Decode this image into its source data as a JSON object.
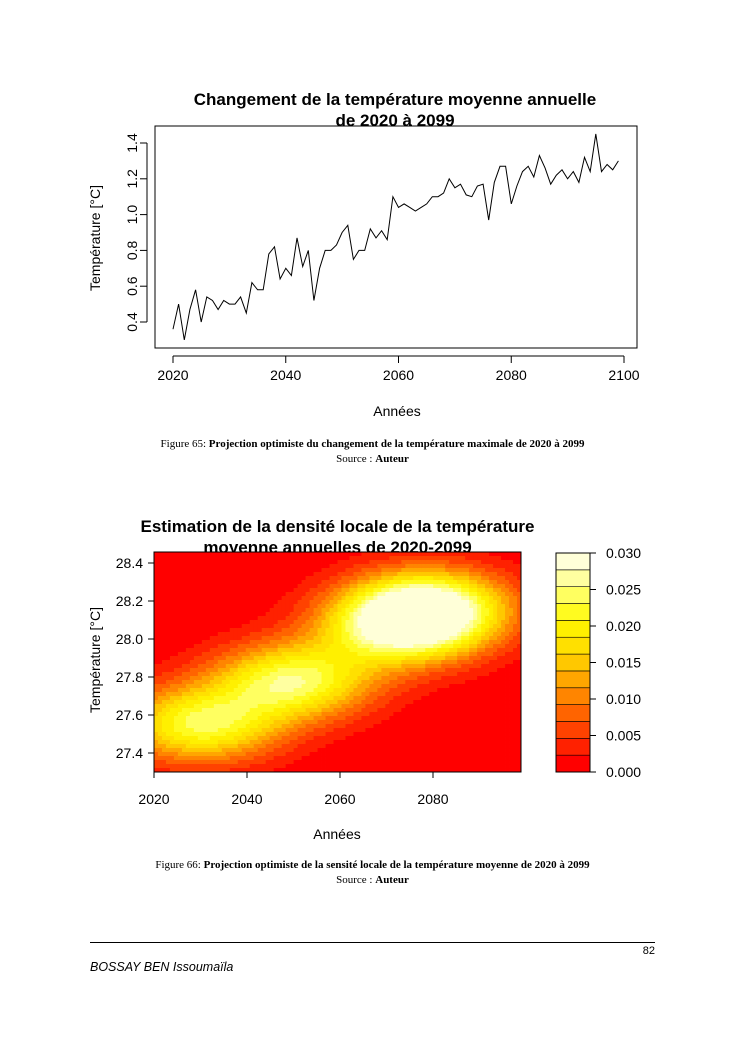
{
  "chart_data": [
    {
      "type": "line",
      "title_line1": "Changement de la température moyenne annuelle",
      "title_line2": "de 2020 à 2099",
      "xlabel": "Années",
      "ylabel": "Température [°C]",
      "xlim": [
        2020,
        2100
      ],
      "ylim": [
        0.3,
        1.5
      ],
      "xticks": [
        "2020",
        "2040",
        "2060",
        "2080",
        "2100"
      ],
      "yticks": [
        "0.4",
        "0.6",
        "0.8",
        "1.0",
        "1.2",
        "1.4"
      ],
      "x": [
        2020,
        2021,
        2022,
        2023,
        2024,
        2025,
        2026,
        2027,
        2028,
        2029,
        2030,
        2031,
        2032,
        2033,
        2034,
        2035,
        2036,
        2037,
        2038,
        2039,
        2040,
        2041,
        2042,
        2043,
        2044,
        2045,
        2046,
        2047,
        2048,
        2049,
        2050,
        2051,
        2052,
        2053,
        2054,
        2055,
        2056,
        2057,
        2058,
        2059,
        2060,
        2061,
        2062,
        2063,
        2064,
        2065,
        2066,
        2067,
        2068,
        2069,
        2070,
        2071,
        2072,
        2073,
        2074,
        2075,
        2076,
        2077,
        2078,
        2079,
        2080,
        2081,
        2082,
        2083,
        2084,
        2085,
        2086,
        2087,
        2088,
        2089,
        2090,
        2091,
        2092,
        2093,
        2094,
        2095,
        2096,
        2097,
        2098,
        2099
      ],
      "values": [
        0.36,
        0.5,
        0.3,
        0.47,
        0.58,
        0.4,
        0.54,
        0.52,
        0.47,
        0.52,
        0.5,
        0.5,
        0.54,
        0.45,
        0.62,
        0.58,
        0.58,
        0.78,
        0.82,
        0.64,
        0.7,
        0.66,
        0.87,
        0.71,
        0.8,
        0.52,
        0.7,
        0.8,
        0.8,
        0.83,
        0.9,
        0.94,
        0.75,
        0.8,
        0.8,
        0.92,
        0.87,
        0.91,
        0.86,
        1.1,
        1.04,
        1.06,
        1.04,
        1.02,
        1.04,
        1.06,
        1.1,
        1.1,
        1.12,
        1.2,
        1.15,
        1.17,
        1.11,
        1.1,
        1.16,
        1.17,
        0.97,
        1.18,
        1.27,
        1.27,
        1.06,
        1.16,
        1.24,
        1.27,
        1.21,
        1.33,
        1.26,
        1.17,
        1.22,
        1.25,
        1.2,
        1.24,
        1.18,
        1.32,
        1.24,
        1.45,
        1.24,
        1.28,
        1.25,
        1.3
      ]
    },
    {
      "type": "heatmap",
      "title_line1": "Estimation de la densité locale de la température",
      "title_line2": "moyenne annuelles de 2020-2099",
      "xlabel": "Années",
      "ylabel": "Température [°C]",
      "xlim": [
        2020,
        2099
      ],
      "ylim": [
        27.3,
        28.45
      ],
      "xticks": [
        "2020",
        "2040",
        "2060",
        "2080"
      ],
      "yticks": [
        "27.4",
        "27.6",
        "27.8",
        "28.0",
        "28.2",
        "28.4"
      ],
      "density_peaks": [
        {
          "x": 2030,
          "y": 27.55,
          "value": 0.023
        },
        {
          "x": 2050,
          "y": 27.78,
          "value": 0.024
        },
        {
          "x": 2073,
          "y": 28.05,
          "value": 0.022
        },
        {
          "x": 2079,
          "y": 28.17,
          "value": 0.028
        }
      ],
      "colorbar": {
        "ticks": [
          "0.000",
          "0.005",
          "0.010",
          "0.015",
          "0.020",
          "0.025",
          "0.030"
        ],
        "colors": [
          "#ff0000",
          "#ff2100",
          "#ff4200",
          "#ff6400",
          "#ff8500",
          "#ffa600",
          "#ffc800",
          "#ffe000",
          "#fff000",
          "#fffb20",
          "#ffff60",
          "#ffffa0",
          "#ffffd8"
        ]
      }
    }
  ],
  "captions": [
    {
      "prefix": "Figure 65: ",
      "bold": "Projection optimiste du changement de la température maximale de 2020 à 2099",
      "source_prefix": "Source : ",
      "source_bold": "Auteur"
    },
    {
      "prefix": "Figure 66: ",
      "bold": "Projection optimiste de la sensité locale de la température moyenne de 2020 à 2099",
      "source_prefix": "Source : ",
      "source_bold": "Auteur"
    }
  ],
  "footer": {
    "page_number": "82",
    "author": "BOSSAY BEN Issoumaïla"
  }
}
